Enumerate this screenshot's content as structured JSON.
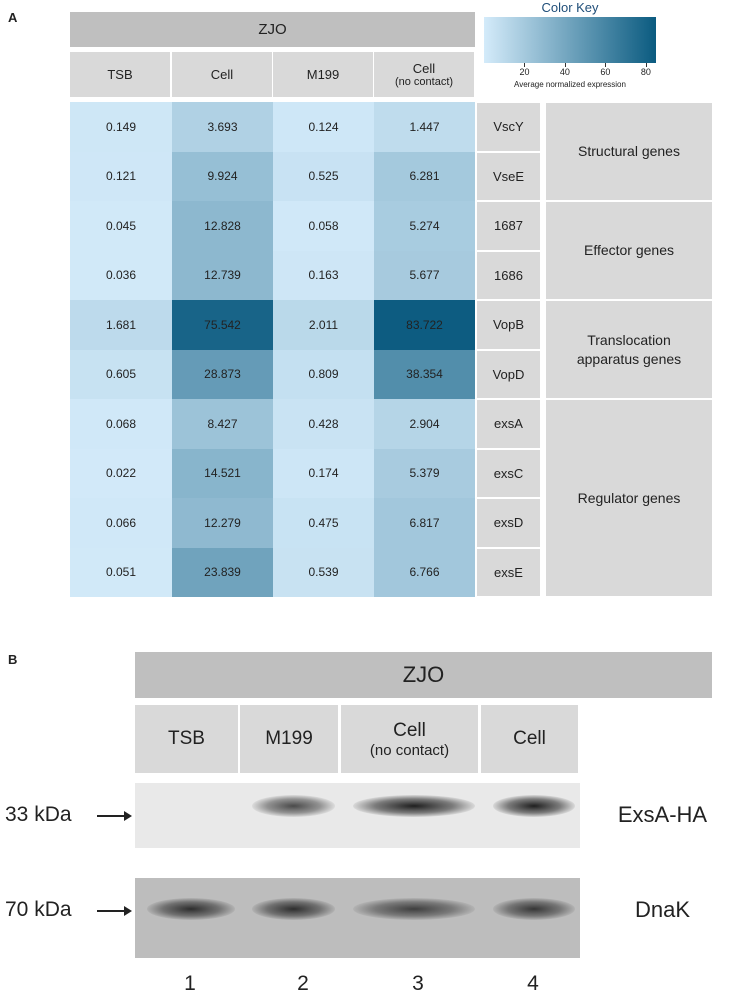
{
  "panel_a": {
    "label": "A",
    "group": "ZJO",
    "columns": [
      {
        "label": "TSB"
      },
      {
        "label": "Cell"
      },
      {
        "label": "M199"
      },
      {
        "label": "Cell",
        "sublabel": "(no contact)"
      }
    ],
    "color_key": {
      "title": "Color Key",
      "range": [
        0,
        85
      ],
      "ticks": [
        20,
        40,
        60,
        80
      ],
      "caption": "Average normalized expression",
      "colors": [
        "#d4ebfa",
        "#0b5b80"
      ]
    },
    "groups": [
      {
        "label": "Structural genes",
        "rows": [
          {
            "gene": "VscY",
            "values": [
              0.149,
              3.693,
              0.124,
              1.447
            ]
          },
          {
            "gene": "VseE",
            "values": [
              0.121,
              9.924,
              0.525,
              6.281
            ]
          }
        ]
      },
      {
        "label": "Effector genes",
        "rows": [
          {
            "gene": "1687",
            "values": [
              0.045,
              12.828,
              0.058,
              5.274
            ]
          },
          {
            "gene": "1686",
            "values": [
              0.036,
              12.739,
              0.163,
              5.677
            ]
          }
        ]
      },
      {
        "label": "Translocation apparatus genes",
        "rows": [
          {
            "gene": "VopB",
            "values": [
              1.681,
              75.542,
              2.011,
              83.722
            ]
          },
          {
            "gene": "VopD",
            "values": [
              0.605,
              28.873,
              0.809,
              38.354
            ]
          }
        ]
      },
      {
        "label": "Regulator genes",
        "rows": [
          {
            "gene": "exsA",
            "values": [
              0.068,
              8.427,
              0.428,
              2.904
            ]
          },
          {
            "gene": "exsC",
            "values": [
              0.022,
              14.521,
              0.174,
              5.379
            ]
          },
          {
            "gene": "exsD",
            "values": [
              0.066,
              12.279,
              0.475,
              6.817
            ]
          },
          {
            "gene": "exsE",
            "values": [
              0.051,
              23.839,
              0.539,
              6.766
            ]
          }
        ]
      }
    ]
  },
  "panel_b": {
    "label": "B",
    "group": "ZJO",
    "lanes": [
      {
        "label": "TSB"
      },
      {
        "label": "M199"
      },
      {
        "label": "Cell",
        "sublabel": "(no contact)"
      },
      {
        "label": "Cell"
      }
    ],
    "blots": [
      {
        "marker": "33 kDa",
        "protein": "ExsA-HA"
      },
      {
        "marker": "70 kDa",
        "protein": "DnaK"
      }
    ],
    "lane_numbers": [
      1,
      2,
      3,
      4
    ]
  }
}
